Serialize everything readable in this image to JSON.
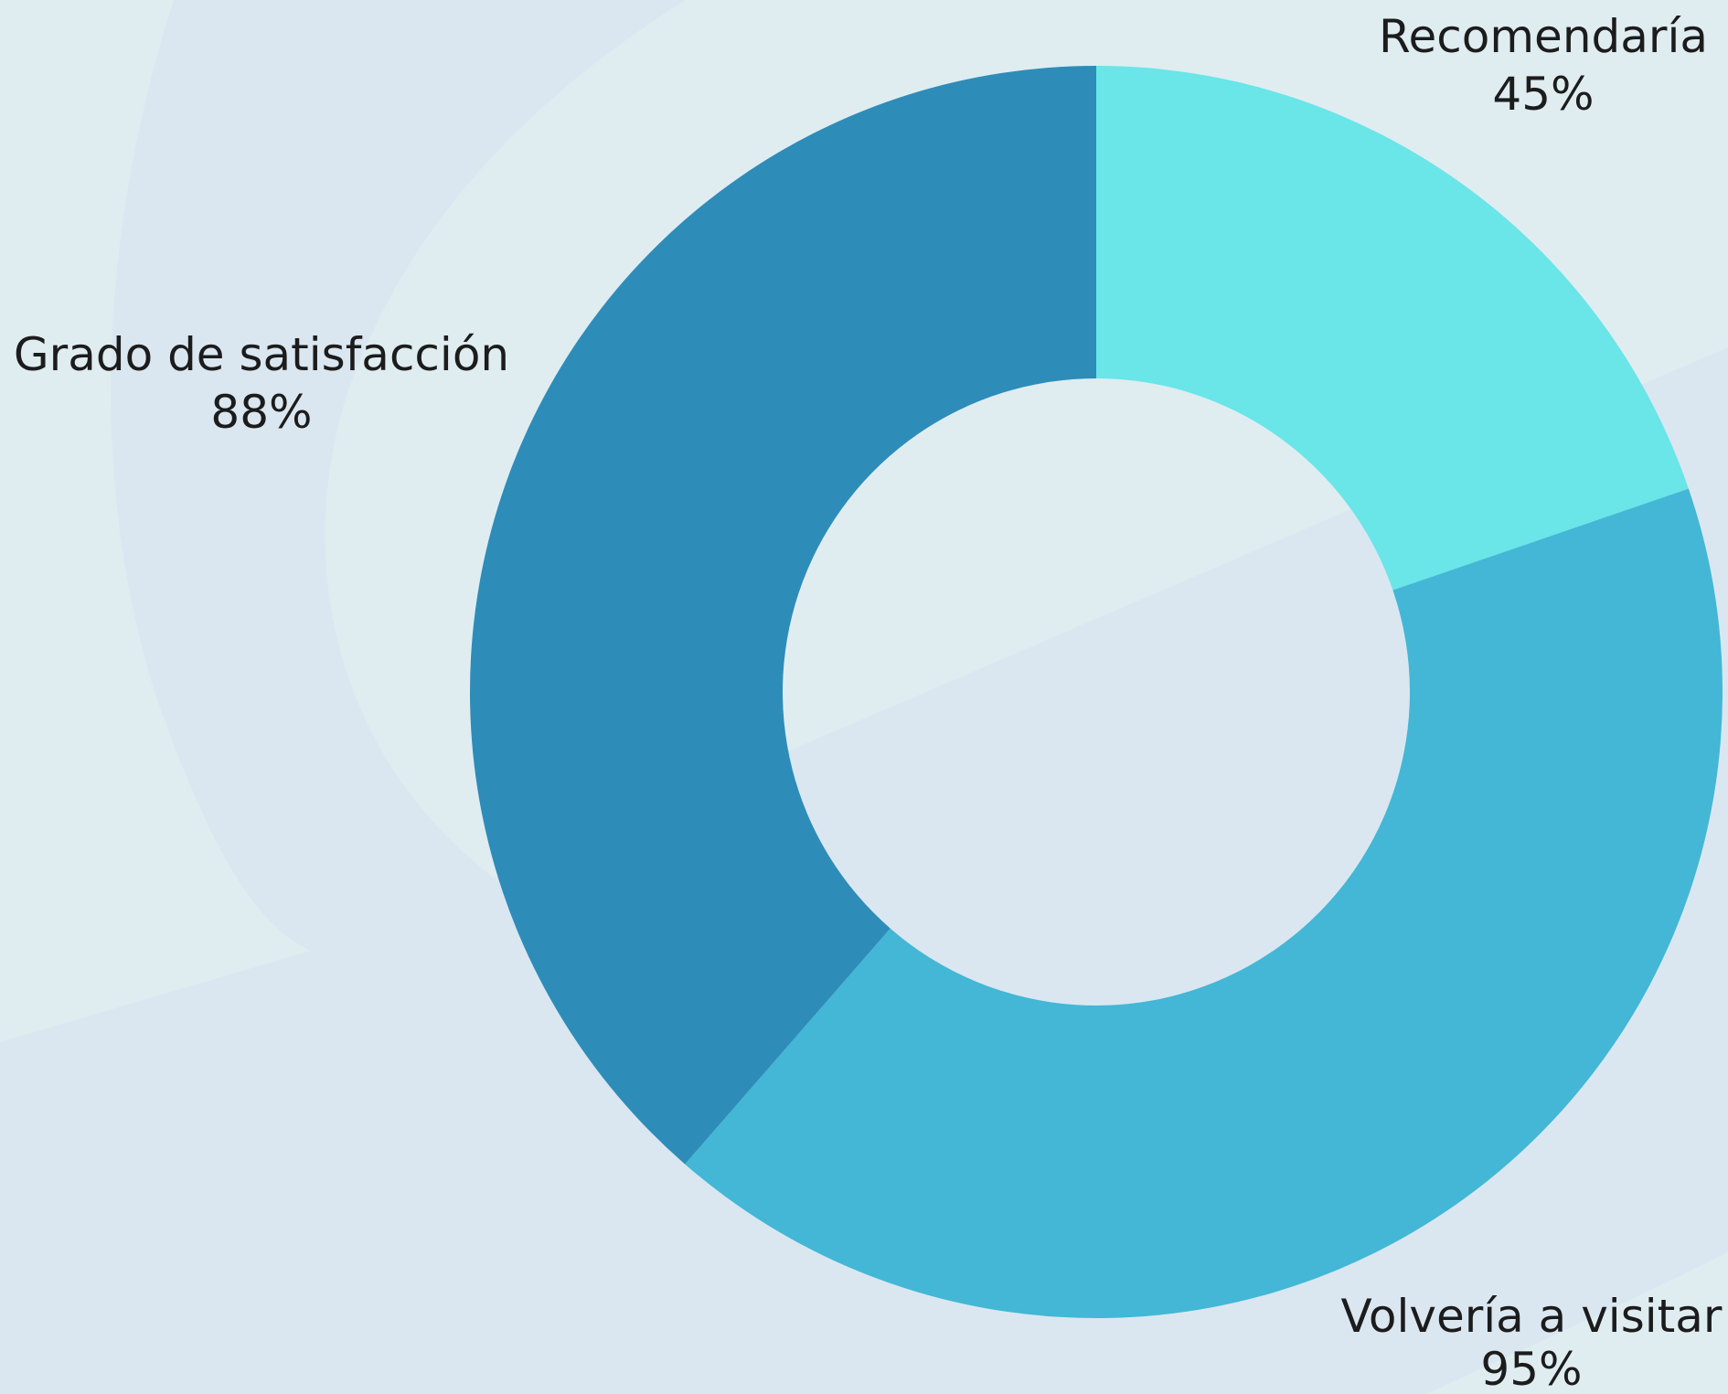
{
  "colors": {
    "background": "#dae7f1",
    "background_swirl": "#dfedf1"
  },
  "chart_data": {
    "type": "pie",
    "variant": "donut",
    "title": "",
    "slices": [
      {
        "label": "Recomendaría",
        "value": 45,
        "value_label": "45%",
        "color": "#6ae5e8"
      },
      {
        "label": "Volvería a visitar",
        "value": 95,
        "value_label": "95%",
        "color": "#43b7d5"
      },
      {
        "label": "Grado de satisfacción",
        "value": 88,
        "value_label": "88%",
        "color": "#2e8cb9"
      }
    ],
    "start_angle_deg": 0,
    "direction": "clockwise",
    "legend": "none",
    "data_labels": "outside"
  }
}
